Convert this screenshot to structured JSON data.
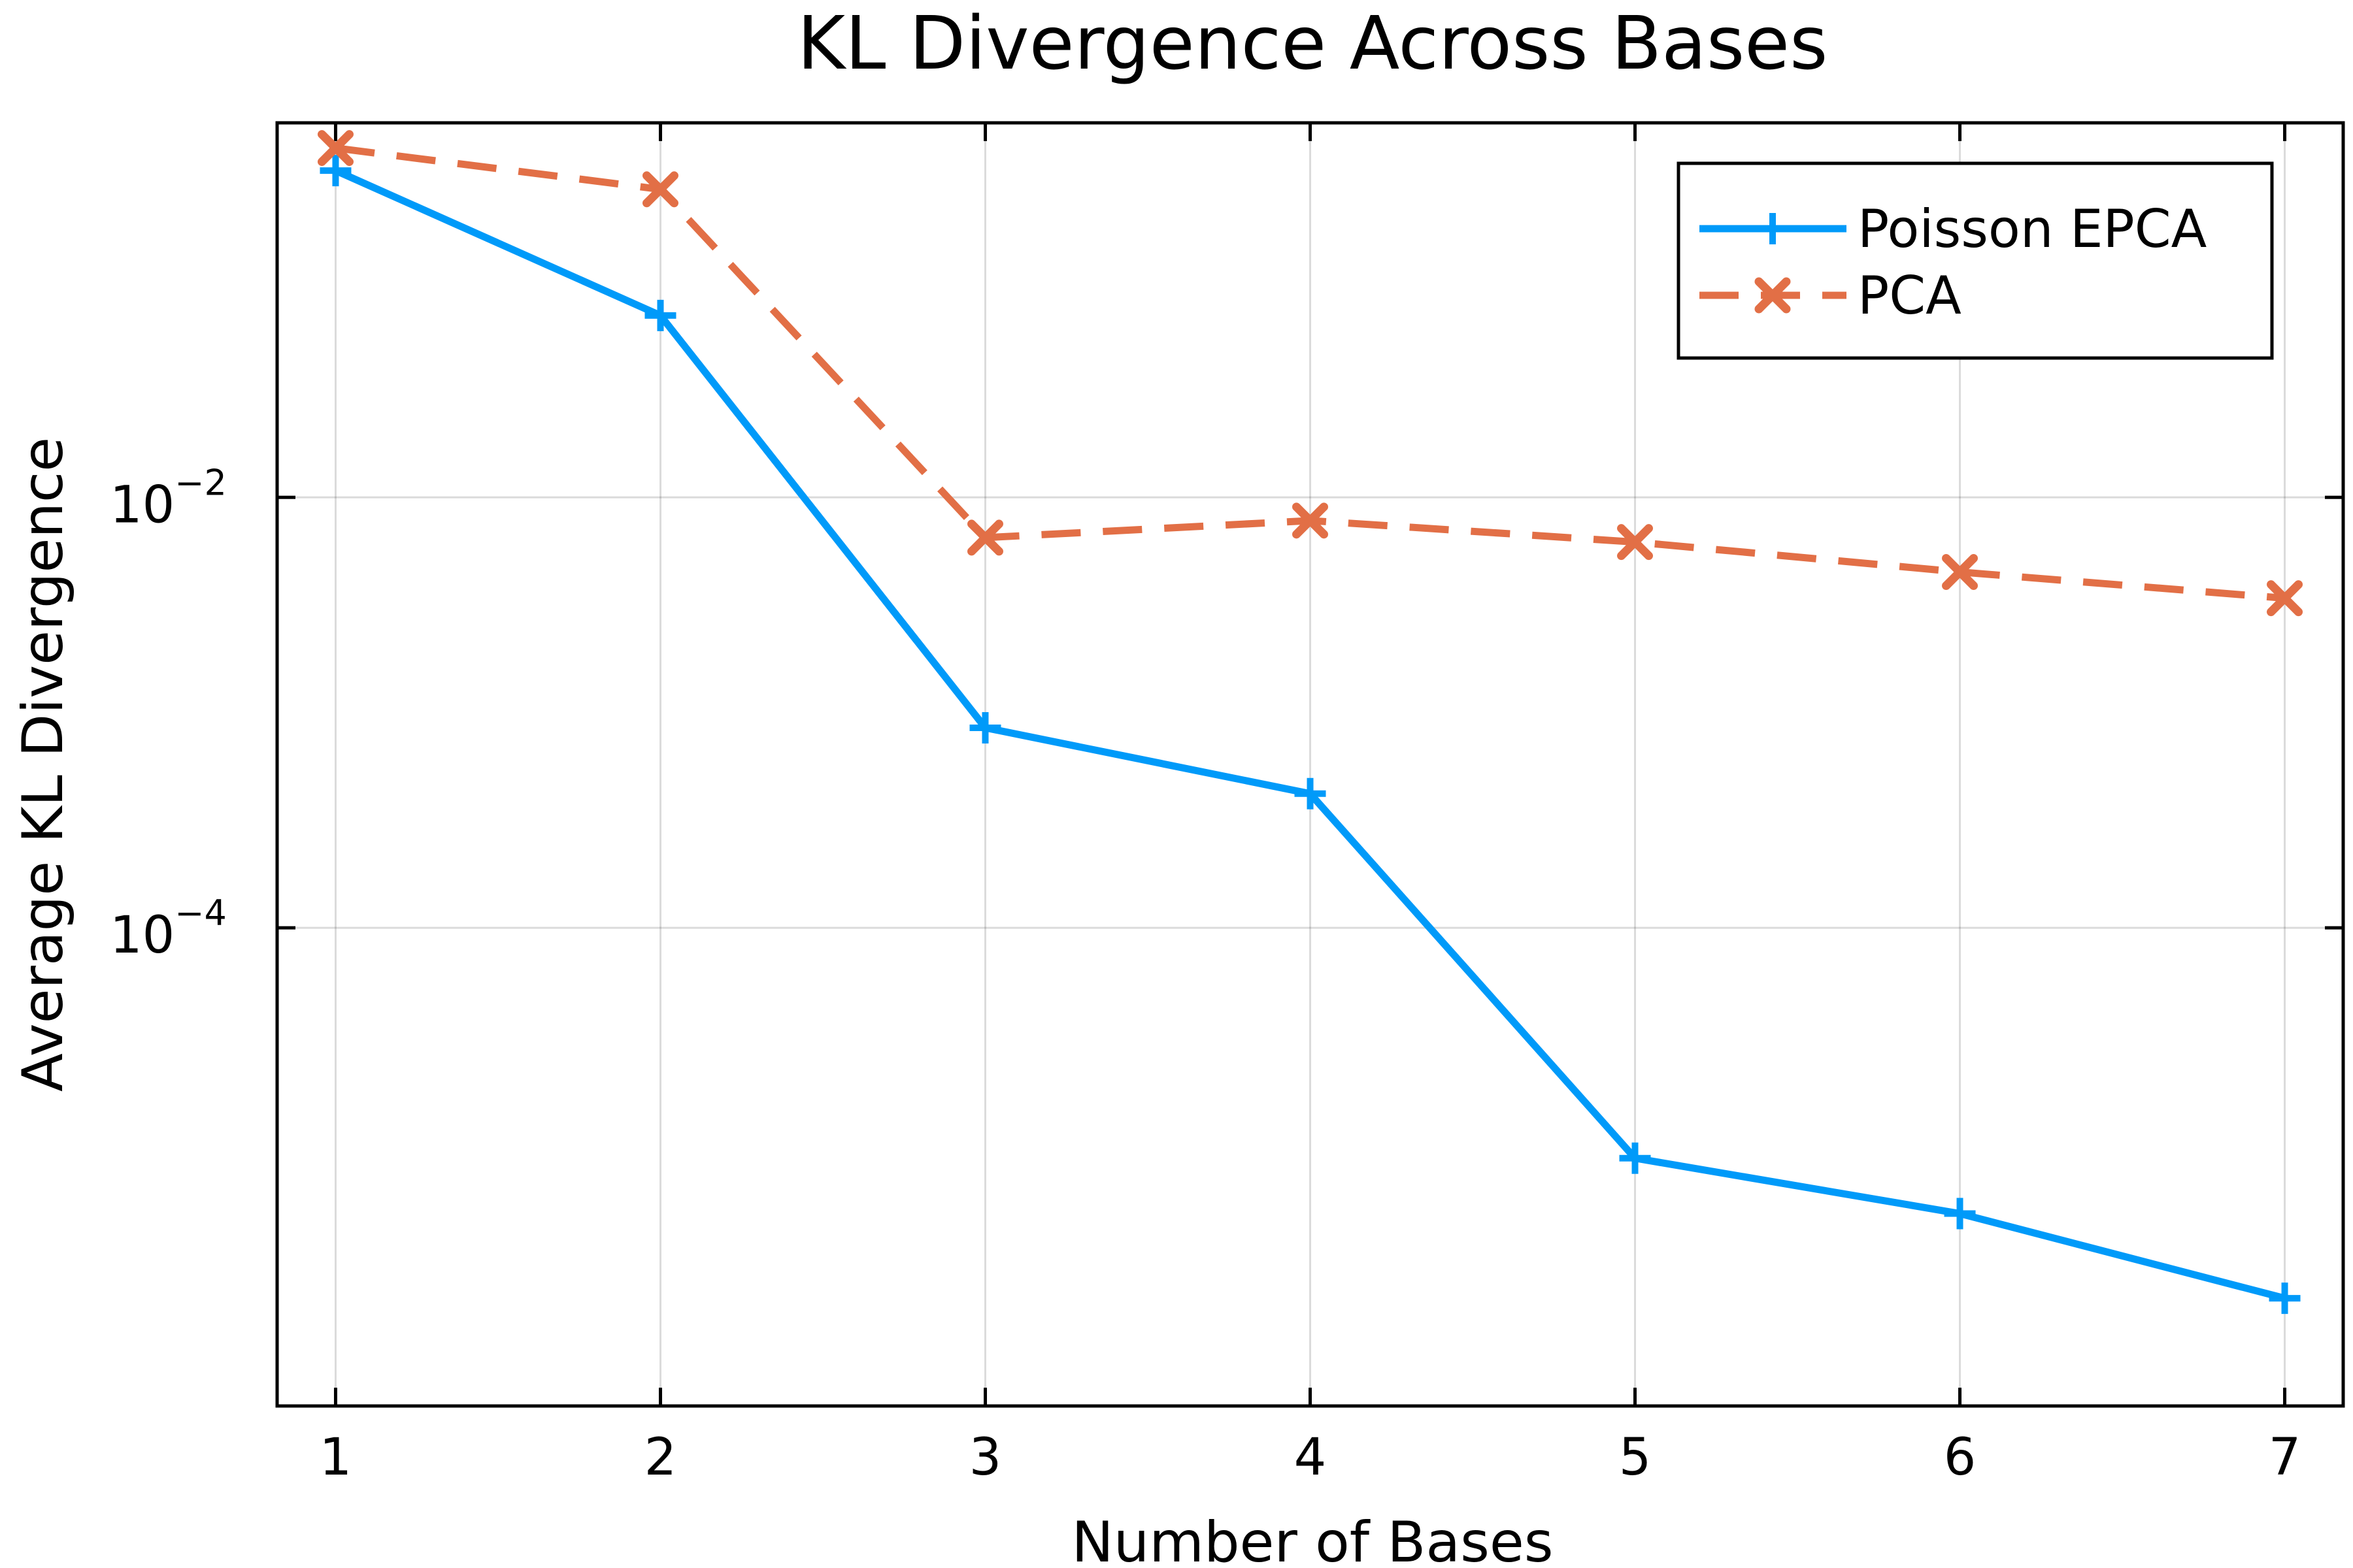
{
  "chart_data": {
    "type": "line",
    "title": "KL Divergence Across Bases",
    "xlabel": "Number of Bases",
    "ylabel": "Average KL Divergence",
    "yscale": "log",
    "xlim": [
      0.82,
      7.18
    ],
    "ylim": [
      6e-07,
      0.55
    ],
    "x": [
      1,
      2,
      3,
      4,
      5,
      6,
      7
    ],
    "x_ticks": [
      1,
      2,
      3,
      4,
      5,
      6,
      7
    ],
    "x_tick_labels": [
      "1",
      "2",
      "3",
      "4",
      "5",
      "6",
      "7"
    ],
    "y_ticks": [
      {
        "value": 0.01,
        "base": "10",
        "exp": "−2"
      },
      {
        "value": 0.0001,
        "base": "10",
        "exp": "−4"
      }
    ],
    "grid": true,
    "legend_position": "top-right",
    "series": [
      {
        "name": "Poisson EPCA",
        "color": "#009af9",
        "line_style": "solid",
        "marker": "plus",
        "values": [
          0.33,
          0.07,
          0.00085,
          0.00042,
          8.5e-06,
          4.7e-06,
          1.9e-06
        ]
      },
      {
        "name": "PCA",
        "color": "#e26f46",
        "line_style": "dashed",
        "marker": "cross",
        "values": [
          0.42,
          0.27,
          0.0065,
          0.0078,
          0.0062,
          0.0045,
          0.0034
        ]
      }
    ]
  }
}
